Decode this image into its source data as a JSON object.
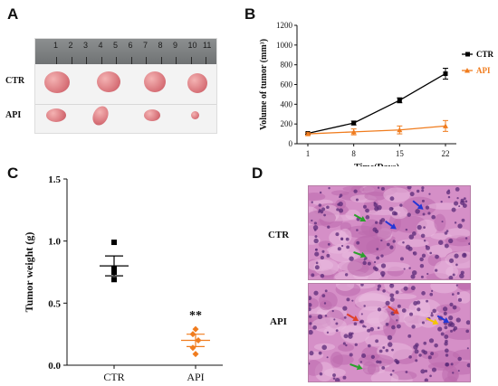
{
  "panels": {
    "a": "A",
    "b": "B",
    "c": "C",
    "d": "D"
  },
  "photo": {
    "ruler_numbers": [
      "1",
      "2",
      "3",
      "4",
      "5",
      "6",
      "7",
      "8",
      "9",
      "10",
      "11"
    ],
    "row_labels": [
      "CTR",
      "API"
    ]
  },
  "histology": {
    "row_labels": [
      "CTR",
      "API"
    ]
  },
  "colors": {
    "ctr": "#000000",
    "api": "#f07c1e",
    "arrow_green": "#2aa12a",
    "arrow_blue": "#2436d6",
    "arrow_red": "#e0412a",
    "arrow_yellow": "#f5c400",
    "he_stain": "#c97bb8"
  },
  "chart_data": [
    {
      "panel": "B",
      "type": "line",
      "xlabel": "Time(Days)",
      "ylabel": "Volume of tumor (mm³)",
      "x": [
        "1",
        "8",
        "15",
        "22"
      ],
      "ylim": [
        0,
        1200
      ],
      "yticks": [
        0,
        200,
        400,
        600,
        800,
        1000,
        1200
      ],
      "legend": "top-right",
      "series": [
        {
          "name": "CTR",
          "marker": "square",
          "values": [
            105,
            210,
            440,
            710
          ],
          "errors": [
            10,
            20,
            25,
            55
          ]
        },
        {
          "name": "API",
          "marker": "triangle",
          "values": [
            100,
            120,
            140,
            180
          ],
          "errors": [
            12,
            30,
            40,
            55
          ]
        }
      ]
    },
    {
      "panel": "C",
      "type": "scatter",
      "ylabel": "Tumor weight (g)",
      "categories": [
        "CTR",
        "API"
      ],
      "ylim": [
        0,
        1.5
      ],
      "yticks": [
        "0.0",
        "0.5",
        "1.0",
        "1.5"
      ],
      "points": [
        [
          0.99,
          0.78,
          0.75,
          0.69
        ],
        [
          0.29,
          0.25,
          0.2,
          0.14,
          0.09
        ]
      ],
      "means": [
        0.8,
        0.2
      ],
      "sem": [
        0.08,
        0.05
      ],
      "annotation": "**"
    }
  ]
}
